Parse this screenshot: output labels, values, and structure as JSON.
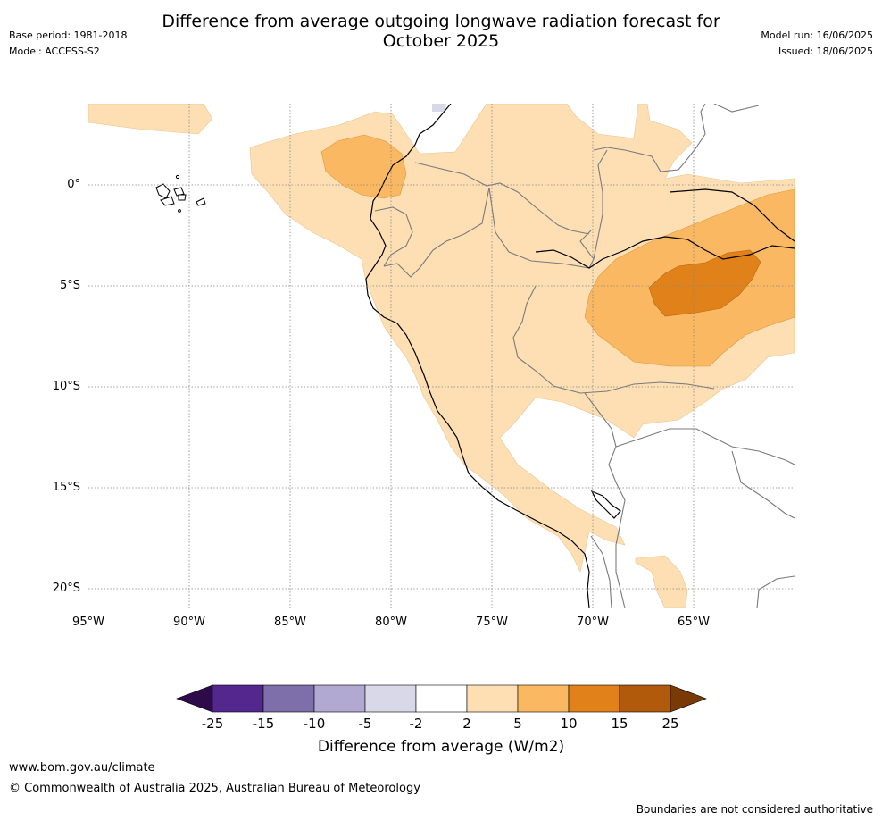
{
  "header": {
    "title": "Difference from average outgoing longwave radiation forecast for October 2025",
    "base_period": "Base period: 1981-2018",
    "model": "Model: ACCESS-S2",
    "model_run": "Model run: 16/06/2025",
    "issued": "Issued: 18/06/2025"
  },
  "map": {
    "lat_labels": [
      "0°",
      "5°S",
      "10°S",
      "15°S",
      "20°S"
    ],
    "lon_labels": [
      "95°W",
      "90°W",
      "85°W",
      "80°W",
      "75°W",
      "70°W",
      "65°W"
    ],
    "colors": {
      "coast": "#000000",
      "border": "#7a7a7a",
      "grid": "#888888",
      "land_bg": "#ffffff"
    }
  },
  "colorbar": {
    "label": "Difference from average (W/m2)",
    "ticks": [
      "-25",
      "-15",
      "-10",
      "-5",
      "-2",
      "2",
      "5",
      "10",
      "15",
      "25"
    ],
    "colors": [
      "#2d0a4a",
      "#54278f",
      "#7e6ea9",
      "#b1a9d1",
      "#d9d8e8",
      "#ffffff",
      "#fddfb3",
      "#fbb862",
      "#e0811a",
      "#b25a0c",
      "#7a3a06"
    ]
  },
  "footer": {
    "url": "www.bom.gov.au/climate",
    "copyright": "© Commonwealth of Australia 2025, Australian Bureau of Meteorology",
    "note": "Boundaries are not considered authoritative"
  }
}
